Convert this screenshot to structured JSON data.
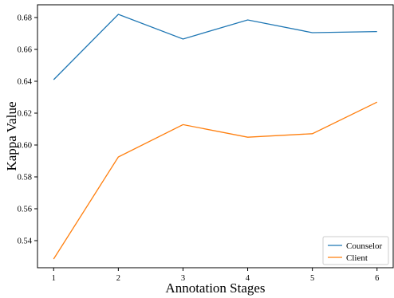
{
  "chart_data": {
    "type": "line",
    "xlabel": "Annotation Stages",
    "ylabel": "Kappa Value",
    "x": [
      1,
      2,
      3,
      4,
      5,
      6
    ],
    "xticks": [
      "1",
      "2",
      "3",
      "4",
      "5",
      "6"
    ],
    "xlim": [
      0.75,
      6.25
    ],
    "ylim": [
      0.523,
      0.688
    ],
    "yticks": [
      "0.54",
      "0.56",
      "0.58",
      "0.60",
      "0.62",
      "0.64",
      "0.66",
      "0.68"
    ],
    "ytick_values": [
      0.54,
      0.56,
      0.58,
      0.6,
      0.62,
      0.64,
      0.66,
      0.68
    ],
    "legend_position": "lower-right",
    "grid": false,
    "series": [
      {
        "name": "Counselor",
        "color": "#1f77b4",
        "values": [
          0.641,
          0.682,
          0.6665,
          0.6785,
          0.6705,
          0.6712
        ]
      },
      {
        "name": "Client",
        "color": "#ff7f0e",
        "values": [
          0.5285,
          0.5925,
          0.6128,
          0.6049,
          0.6071,
          0.6269
        ]
      }
    ]
  }
}
